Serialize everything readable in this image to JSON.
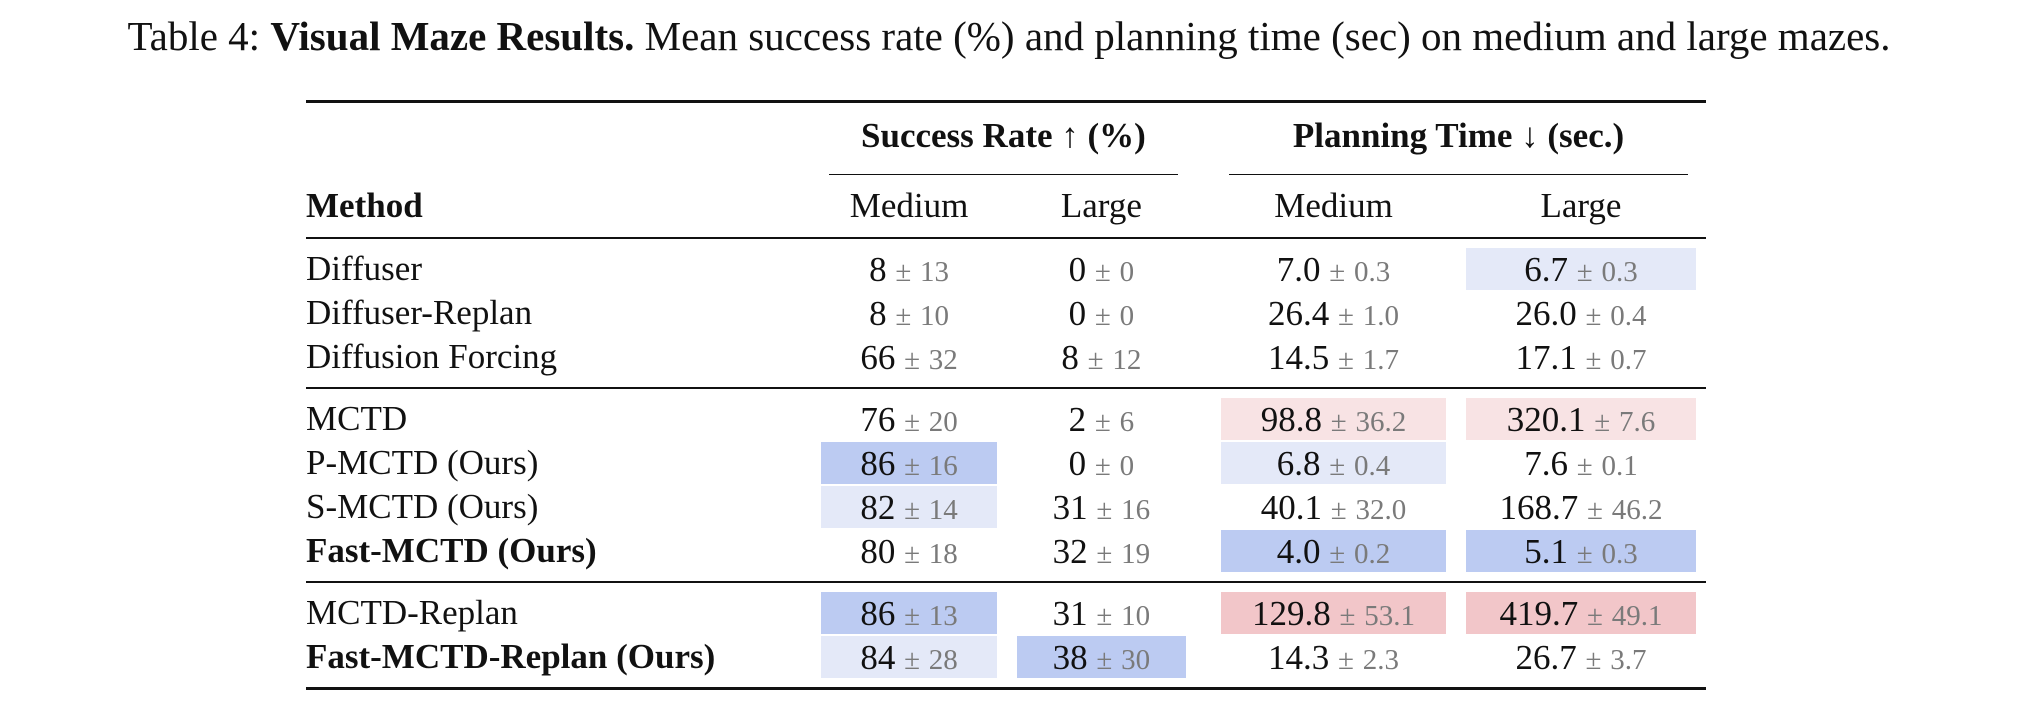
{
  "caption": {
    "prefix": "Table 4:",
    "bold_title": "Visual Maze Results.",
    "text": "Mean success rate (%) and planning time (sec) on medium and large mazes."
  },
  "table": {
    "method_header": "Method",
    "group_success": "Success Rate ↑ (%)",
    "group_time": "Planning Time ↓ (sec.)",
    "sub_sr_medium": "Medium",
    "sub_sr_large": "Large",
    "sub_pt_medium": "Medium",
    "sub_pt_large": "Large",
    "pm_symbol": "±",
    "rows": [
      {
        "method": "Diffuser",
        "sr_m": "8",
        "sr_m_std": "13",
        "sr_l": "0",
        "sr_l_std": "0",
        "pt_m": "7.0",
        "pt_m_std": "0.3",
        "pt_l": "6.7",
        "pt_l_std": "0.3"
      },
      {
        "method": "Diffuser-Replan",
        "sr_m": "8",
        "sr_m_std": "10",
        "sr_l": "0",
        "sr_l_std": "0",
        "pt_m": "26.4",
        "pt_m_std": "1.0",
        "pt_l": "26.0",
        "pt_l_std": "0.4"
      },
      {
        "method": "Diffusion Forcing",
        "sr_m": "66",
        "sr_m_std": "32",
        "sr_l": "8",
        "sr_l_std": "12",
        "pt_m": "14.5",
        "pt_m_std": "1.7",
        "pt_l": "17.1",
        "pt_l_std": "0.7"
      },
      {
        "method": "MCTD",
        "sr_m": "76",
        "sr_m_std": "20",
        "sr_l": "2",
        "sr_l_std": "6",
        "pt_m": "98.8",
        "pt_m_std": "36.2",
        "pt_l": "320.1",
        "pt_l_std": "7.6"
      },
      {
        "method": "P-MCTD (Ours)",
        "sr_m": "86",
        "sr_m_std": "16",
        "sr_l": "0",
        "sr_l_std": "0",
        "pt_m": "6.8",
        "pt_m_std": "0.4",
        "pt_l": "7.6",
        "pt_l_std": "0.1"
      },
      {
        "method": "S-MCTD (Ours)",
        "sr_m": "82",
        "sr_m_std": "14",
        "sr_l": "31",
        "sr_l_std": "16",
        "pt_m": "40.1",
        "pt_m_std": "32.0",
        "pt_l": "168.7",
        "pt_l_std": "46.2"
      },
      {
        "method": "Fast-MCTD (Ours)",
        "sr_m": "80",
        "sr_m_std": "18",
        "sr_l": "32",
        "sr_l_std": "19",
        "pt_m": "4.0",
        "pt_m_std": "0.2",
        "pt_l": "5.1",
        "pt_l_std": "0.3"
      },
      {
        "method": "MCTD-Replan",
        "sr_m": "86",
        "sr_m_std": "13",
        "sr_l": "31",
        "sr_l_std": "10",
        "pt_m": "129.8",
        "pt_m_std": "53.1",
        "pt_l": "419.7",
        "pt_l_std": "49.1"
      },
      {
        "method": "Fast-MCTD-Replan (Ours)",
        "sr_m": "84",
        "sr_m_std": "28",
        "sr_l": "38",
        "sr_l_std": "30",
        "pt_m": "14.3",
        "pt_m_std": "2.3",
        "pt_l": "26.7",
        "pt_l_std": "3.7"
      }
    ]
  },
  "highlight_colors": {
    "blue_strong": "#bccbf2",
    "blue_light": "#e4e9f8",
    "red_strong": "#f2c6c9",
    "red_light": "#f8e3e4"
  }
}
